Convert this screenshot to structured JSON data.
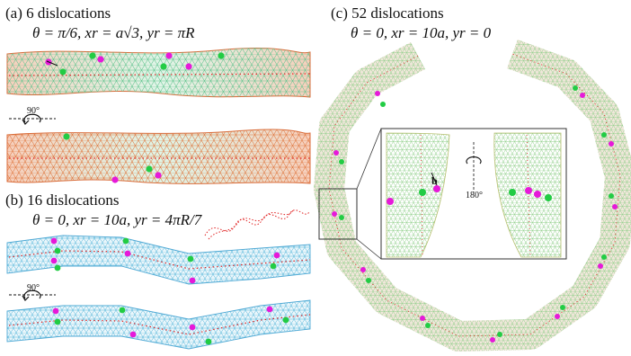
{
  "panels": {
    "a": {
      "title": "(a) 6 dislocations",
      "formula": "θ = π/6, xr = a√3, yr = πR",
      "rotation_label": "90°"
    },
    "b": {
      "title": "(b) 16 dislocations",
      "formula": "θ = 0, xr = 10a, yr = 4πR/7",
      "rotation_label": "90°"
    },
    "c": {
      "title": "(c) 52 dislocations",
      "formula": "θ = 0, xr = 10a, yr = 0",
      "inset_rotation_label": "180°",
      "burgers_label": "b"
    }
  },
  "colors": {
    "lattice_warm": "#e06a3a",
    "lattice_cool": "#6ccf9a",
    "lattice_blue": "#5ab4e0",
    "dislocation_magenta": "#e619d9",
    "dislocation_green": "#22cc44",
    "axis_dotted": "#e02020",
    "ring_edge": "#c8a070"
  }
}
